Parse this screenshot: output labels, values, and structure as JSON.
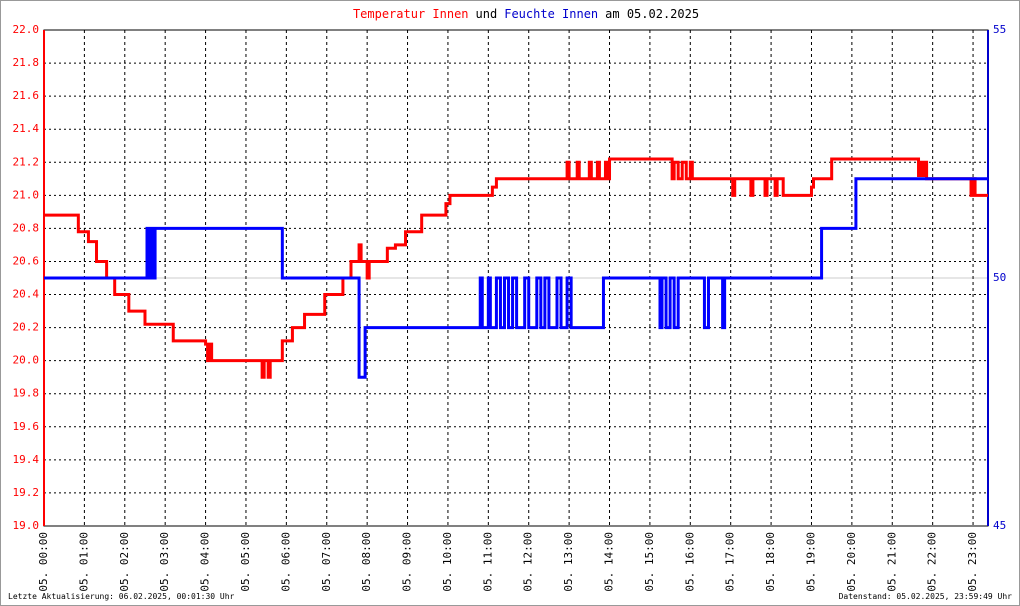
{
  "chart_data": {
    "type": "line",
    "title_parts": [
      {
        "text": "Temperatur Innen",
        "color": "#ff0000"
      },
      {
        "text": "und",
        "color": "#000000"
      },
      {
        "text": "Feuchte Innen",
        "color": "#0000cc"
      },
      {
        "text": "am 05.02.2025",
        "color": "#000000"
      }
    ],
    "footnotes": [
      "Letzte Aktualisierung: 06.02.2025, 00:01:30 Uhr",
      "Datenstand: 05.02.2025, 23:59:49 Uhr"
    ],
    "xlim": [
      0,
      23.37
    ],
    "xticks": [
      {
        "value": 0,
        "label": "05. 00:00"
      },
      {
        "value": 1,
        "label": "05. 01:00"
      },
      {
        "value": 2,
        "label": "05. 02:00"
      },
      {
        "value": 3,
        "label": "05. 03:00"
      },
      {
        "value": 4,
        "label": "05. 04:00"
      },
      {
        "value": 5,
        "label": "05. 05:00"
      },
      {
        "value": 6,
        "label": "05. 06:00"
      },
      {
        "value": 7,
        "label": "05. 07:00"
      },
      {
        "value": 8,
        "label": "05. 08:00"
      },
      {
        "value": 9,
        "label": "05. 09:00"
      },
      {
        "value": 10,
        "label": "05. 10:00"
      },
      {
        "value": 11,
        "label": "05. 11:00"
      },
      {
        "value": 12,
        "label": "05. 12:00"
      },
      {
        "value": 13,
        "label": "05. 13:00"
      },
      {
        "value": 14,
        "label": "05. 14:00"
      },
      {
        "value": 15,
        "label": "05. 15:00"
      },
      {
        "value": 16,
        "label": "05. 16:00"
      },
      {
        "value": 17,
        "label": "05. 17:00"
      },
      {
        "value": 18,
        "label": "05. 18:00"
      },
      {
        "value": 19,
        "label": "05. 19:00"
      },
      {
        "value": 20,
        "label": "05. 20:00"
      },
      {
        "value": 21,
        "label": "05. 21:00"
      },
      {
        "value": 22,
        "label": "05. 22:00"
      },
      {
        "value": 23,
        "label": "05. 23:00"
      }
    ],
    "ylim": [
      19.0,
      22.0
    ],
    "yticks": [
      {
        "value": 19,
        "label": "19.0"
      },
      19.2,
      19.4,
      19.6,
      19.8,
      {
        "value": 20,
        "label": "20.0"
      },
      20.2,
      20.4,
      20.6,
      20.8,
      {
        "value": 21,
        "label": "21.0"
      },
      21.2,
      21.4,
      21.6,
      21.8,
      {
        "value": 22,
        "label": "22.0"
      }
    ],
    "y2lim": [
      45,
      55
    ],
    "y2ticks": [
      45,
      50,
      55
    ],
    "grid": true,
    "step": true,
    "y_color": "#ff0000",
    "y2_color": "#0000cc",
    "series": [
      {
        "name": "Temperatur Innen",
        "color": "#ff0000",
        "x": [
          0,
          0.85,
          1.1,
          1.3,
          1.55,
          1.75,
          2.1,
          2.5,
          3.2,
          4.0,
          4.05,
          4.1,
          4.15,
          5.4,
          5.45,
          5.55,
          5.6,
          5.9,
          6.15,
          6.45,
          6.95,
          7.4,
          7.6,
          7.8,
          7.85,
          8.0,
          8.05,
          8.5,
          8.7,
          8.95,
          9.35,
          9.95,
          10.05,
          11.1,
          11.2,
          12.95,
          13.0,
          13.2,
          13.25,
          13.5,
          13.55,
          13.7,
          13.75,
          13.9,
          13.95,
          14.0,
          15.55,
          15.6,
          15.7,
          15.8,
          15.9,
          16.0,
          16.05,
          17.05,
          17.1,
          17.5,
          17.55,
          17.85,
          17.9,
          18.1,
          18.15,
          18.3,
          19.0,
          19.05,
          19.5,
          21.65,
          21.7,
          21.75,
          21.8,
          21.85,
          22.95,
          23.0,
          23.05,
          23.37
        ],
        "values": [
          20.88,
          20.78,
          20.72,
          20.6,
          20.5,
          20.4,
          20.3,
          20.22,
          20.12,
          20.1,
          20.0,
          20.1,
          20.0,
          19.9,
          20.0,
          19.9,
          20.0,
          20.12,
          20.2,
          20.28,
          20.4,
          20.5,
          20.6,
          20.7,
          20.6,
          20.5,
          20.6,
          20.68,
          20.7,
          20.78,
          20.88,
          20.95,
          21.0,
          21.05,
          21.1,
          21.2,
          21.1,
          21.2,
          21.1,
          21.2,
          21.1,
          21.2,
          21.1,
          21.2,
          21.1,
          21.22,
          21.1,
          21.2,
          21.1,
          21.2,
          21.1,
          21.2,
          21.1,
          21.0,
          21.1,
          21.0,
          21.1,
          21.0,
          21.1,
          21.0,
          21.1,
          21.0,
          21.05,
          21.1,
          21.22,
          21.12,
          21.2,
          21.12,
          21.2,
          21.1,
          21.0,
          21.1,
          21.0,
          21.0
        ]
      },
      {
        "name": "Feuchte Innen",
        "color": "#0000ff",
        "axis": "y2",
        "x": [
          0,
          2.55,
          2.6,
          2.65,
          2.7,
          2.75,
          5.9,
          7.8,
          7.95,
          10.8,
          10.85,
          11.0,
          11.05,
          11.2,
          11.3,
          11.4,
          11.5,
          11.6,
          11.7,
          11.9,
          12.0,
          12.2,
          12.3,
          12.4,
          12.5,
          12.7,
          12.8,
          12.95,
          13.05,
          13.85,
          15.25,
          15.3,
          15.4,
          15.5,
          15.6,
          15.7,
          16.35,
          16.45,
          16.8,
          16.85,
          19.25,
          20.1,
          23.37
        ],
        "values": [
          50,
          51,
          50,
          51,
          50,
          51,
          50,
          48,
          49,
          50,
          49,
          50,
          49,
          50,
          49,
          50,
          49,
          50,
          49,
          50,
          49,
          50,
          49,
          50,
          49,
          50,
          49,
          50,
          49,
          50,
          49,
          50,
          49,
          50,
          49,
          50,
          49,
          50,
          49,
          50,
          51,
          52,
          52
        ]
      }
    ]
  }
}
